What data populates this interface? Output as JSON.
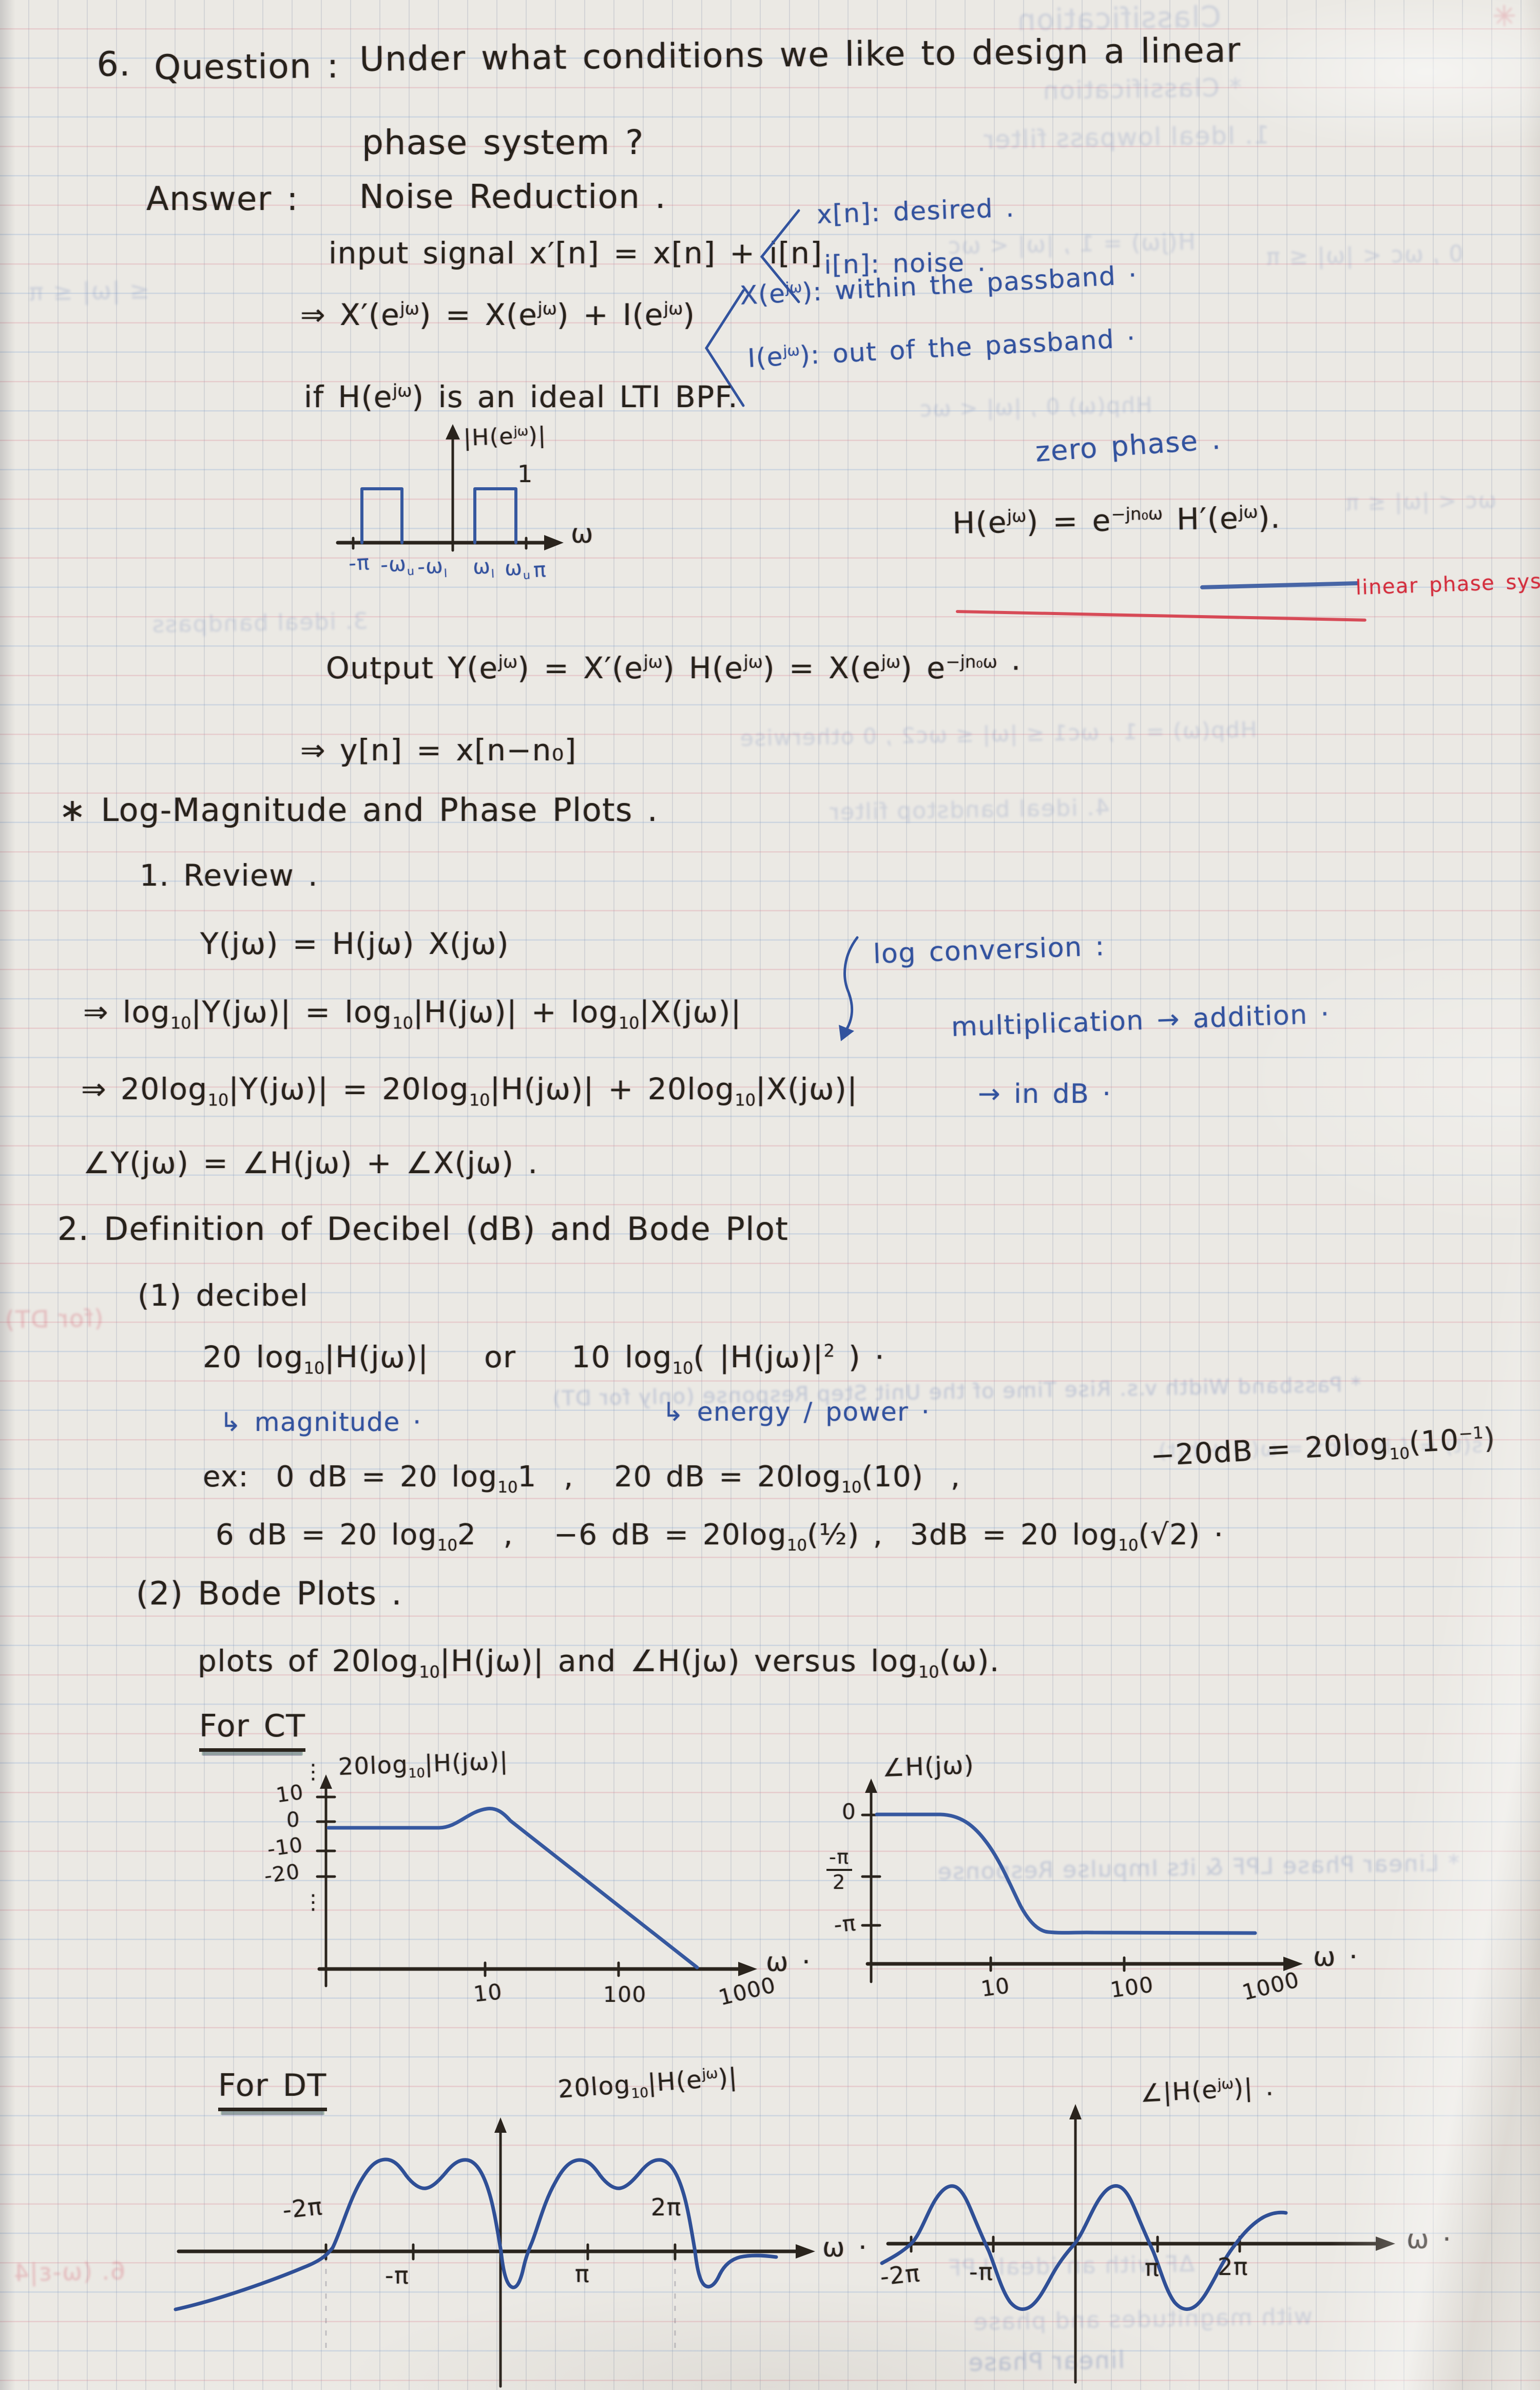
{
  "header": {
    "number": "6.",
    "question_label": "Question :",
    "question_line1": "Under what conditions we like to design a linear",
    "question_line2": "phase system ?",
    "answer_label": "Answer :",
    "answer_text": "Noise Reduction ."
  },
  "signal": {
    "input_line": "input signal x′[n] = x[n] + i[n]",
    "desired_note": "x[n]: desired .",
    "noise_note": "i[n]: noise .",
    "freq_line": "⇒ X′(e<sup>jω</sup>) = X(e<sup>jω</sup>) + I(e<sup>jω</sup>)",
    "passband_note": "X(e<sup>jω</sup>): within the passband ·",
    "stopband_note": "I(e<sup>jω</sup>): out of the passband ·",
    "bpf_line": "if H(e<sup>jω</sup>) is an ideal LTI BPF."
  },
  "bpf_plot": {
    "ylabel": "|H(e<sup>jω</sup>)|",
    "one": "1",
    "xlabel": "ω",
    "ticks": [
      "-π",
      "-ω<sub>u</sub>",
      "-ω<sub>l</sub>",
      "ω<sub>l</sub>",
      "ω<sub>u</sub>",
      "π"
    ]
  },
  "phase": {
    "zero_phase": "zero phase .",
    "formula": "H(e<sup>jω</sup>) = e<sup>−jn₀ω</sup> H′(e<sup>jω</sup>).",
    "linear_note": "linear phase system ."
  },
  "output": {
    "line1": "Output Y(e<sup>jω</sup>) = X′(e<sup>jω</sup>) H(e<sup>jω</sup>) = X(e<sup>jω</sup>) e<sup>−jn₀ω</sup> ·",
    "line2": "⇒ y[n] = x[n−n₀]"
  },
  "logmag": {
    "heading": "∗ Log-Magnitude and Phase Plots .",
    "review": "1. Review .",
    "eq1": "Y(jω) = H(jω) X(jω)",
    "conv_note": "log conversion :",
    "mult_note": "multiplication → addition ·",
    "eq2": "⇒ log<sub>10</sub>|Y(jω)| = log<sub>10</sub>|H(jω)| + log<sub>10</sub>|X(jω)|",
    "eq3": "⇒ 20log<sub>10</sub>|Y(jω)| = 20log<sub>10</sub>|H(jω)| + 20log<sub>10</sub>|X(jω)|",
    "db_note": "→ in dB ·",
    "eq4": "∠Y(jω) = ∠H(jω) + ∠X(jω) ."
  },
  "decibel": {
    "heading": "2. Definition of Decibel (dB) and Bode Plot",
    "item1": "(1) decibel",
    "def_line": "20 log<sub>10</sub>|H(jω)|&nbsp;&nbsp;&nbsp; or &nbsp;&nbsp;&nbsp;10 log<sub>10</sub>( |H(jω)|<sup>2</sup> ) ·",
    "mag_note": "↳ magnitude ·",
    "energy_note": "↳ energy / power ·",
    "ex1": "ex:&nbsp; 0 dB = 20 log<sub>10</sub>1&nbsp; ,&nbsp;&nbsp; 20 dB = 20log<sub>10</sub>(10)&nbsp; ,",
    "ex1b": "−20dB = 20log<sub>10</sub>(10<sup>−1</sup>)",
    "ex2": "6 dB = 20 log<sub>10</sub>2&nbsp; ,&nbsp;&nbsp; −6 dB = 20log<sub>10</sub>(½) ,&nbsp; 3dB = 20 log<sub>10</sub>(√2) ·"
  },
  "bode": {
    "item2": "(2) Bode Plots .",
    "desc": "plots of 20log<sub>10</sub>|H(jω)| and ∠H(jω) versus log<sub>10</sub>(ω).",
    "for_ct": "For CT",
    "for_dt": "For DT"
  },
  "plots": {
    "ct_mag": {
      "ylabel": "20log<sub>10</sub>|H(jω)|",
      "yticks": [
        "10",
        "0",
        "-10",
        "-20"
      ],
      "dots": "⋮",
      "xticks": [
        "10",
        "100",
        "1000"
      ],
      "xlabel": "ω ·"
    },
    "ct_phase": {
      "ylabel": "∠H(jω)",
      "ytick_zero": "0",
      "yfrac_num": "-π",
      "yfrac_den": "2",
      "ytick_pi": "-π",
      "xticks": [
        "10",
        "100",
        "1000"
      ],
      "xlabel": "ω ·"
    },
    "dt_mag": {
      "ylabel": "20log<sub>10</sub>|H(e<sup>jω</sup>)|",
      "xticks": [
        "-2π",
        "-π",
        "π",
        "2π"
      ],
      "xlabel": "ω ·"
    },
    "dt_phase": {
      "ylabel": "∠|H(e<sup>jω</sup>)| .",
      "xticks": [
        "-2π",
        "-π",
        "π",
        "2π"
      ],
      "xlabel": "ω ·"
    }
  },
  "bleedthrough": [
    {
      "text": "✳"
    },
    {
      "text": "Classification"
    },
    {
      "text": "* Classification"
    },
    {
      "text": "1. Ideal lowpass filter"
    },
    {
      "text": "H(jω) = 1 , |ω| < ωc"
    },
    {
      "text": "0 , ωc < |ω| ≤ π"
    },
    {
      "text": "≤ |ω| ≤ π"
    },
    {
      "text": "Hhp(ω)  0 , |ω| < ωc"
    },
    {
      "text": "ωc < |ω| ≤ π"
    },
    {
      "text": "3. ideal bandpass"
    },
    {
      "text": "Hbp(ω) = 1 , ωc1 ≤ |ω| ≤ ωc2 , 0 otherwise"
    },
    {
      "text": "4. ideal bandstop filter"
    },
    {
      "text": "* Passband Width v.s. Rise Time of the Unit Step Response (only for DT)"
    },
    {
      "text": "s(t) = ∫ h(τ) dτ = ω(t) + h(t)"
    },
    {
      "text": "(for DT)"
    },
    {
      "text": "* Linear Phase LPF & its Impulse Response"
    },
    {
      "text": "ΔF with an ideal LPF"
    },
    {
      "text": "with magnitudes and phase"
    },
    {
      "text": "linear Phase"
    },
    {
      "text": "6. (ω-ε|4"
    }
  ]
}
